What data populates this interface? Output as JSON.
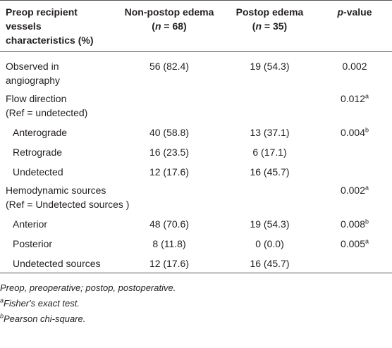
{
  "table": {
    "header": [
      {
        "lines": [
          [
            "Preop recipient"
          ],
          [
            "vessels"
          ],
          [
            "characteristics (%)"
          ]
        ]
      },
      {
        "lines": [
          [
            "Non-postop edema"
          ],
          [
            "(",
            {
              "italic": "n"
            },
            " = 68)"
          ]
        ]
      },
      {
        "lines": [
          [
            "Postop edema"
          ],
          [
            "(",
            {
              "italic": "n"
            },
            " = 35)"
          ]
        ]
      },
      {
        "lines": [
          [
            {
              "italic": "p"
            },
            "-value"
          ]
        ]
      }
    ],
    "rows": [
      {
        "label": [
          "Observed in",
          "angiography"
        ],
        "values": [
          "56 (82.4)",
          "19 (54.3)"
        ],
        "p": {
          "value": "0.002"
        }
      },
      {
        "label": [
          "Flow direction",
          "(Ref = undetected)"
        ],
        "p": {
          "value": "0.012",
          "note": "a"
        },
        "items": [
          {
            "label": [
              "Anterograde"
            ],
            "values": [
              "40 (58.8)",
              "13 (37.1)"
            ],
            "p": {
              "value": "0.004",
              "note": "b"
            }
          },
          {
            "label": [
              "Retrograde"
            ],
            "values": [
              "16 (23.5)",
              "6 (17.1)"
            ]
          },
          {
            "label": [
              "Undetected"
            ],
            "values": [
              "12 (17.6)",
              "16 (45.7)"
            ]
          }
        ]
      },
      {
        "label": [
          "Hemodynamic sources",
          "(Ref = Undetected sources )"
        ],
        "p": {
          "value": "0.002",
          "note": "a"
        },
        "items": [
          {
            "label": [
              "Anterior"
            ],
            "values": [
              "48 (70.6)",
              "19 (54.3)"
            ],
            "p": {
              "value": "0.008",
              "note": "b"
            }
          },
          {
            "label": [
              "Posterior"
            ],
            "values": [
              "8 (11.8)",
              "0 (0.0)"
            ],
            "p": {
              "value": "0.005",
              "note": "a"
            }
          },
          {
            "label": [
              "Undetected sources"
            ],
            "values": [
              "12 (17.6)",
              "16 (45.7)"
            ]
          }
        ]
      }
    ],
    "footnotes": [
      {
        "text": "Preop, preoperative; postop, postoperative."
      },
      {
        "mark": "a",
        "text": "Fisher's exact test."
      },
      {
        "mark": "b",
        "text": "Pearson chi-square."
      }
    ]
  }
}
